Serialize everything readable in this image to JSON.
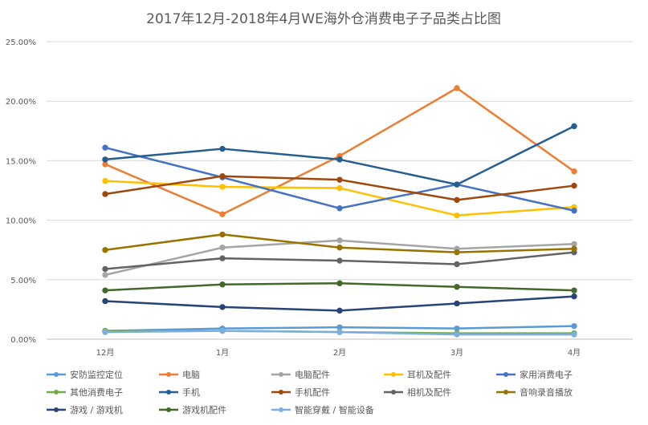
{
  "chart_data": {
    "type": "line",
    "title": "2017年12月-2018年4月WE海外仓消费电子子品类占比图",
    "xlabel": "",
    "ylabel": "",
    "categories": [
      "12月",
      "1月",
      "2月",
      "3月",
      "4月"
    ],
    "ylim": [
      0,
      25
    ],
    "yticks": [
      "0.00%",
      "5.00%",
      "10.00%",
      "15.00%",
      "20.00%",
      "25.00%"
    ],
    "grid": true,
    "legend_position": "bottom",
    "series": [
      {
        "name": "安防监控定位",
        "color": "#5b9bd5",
        "values": [
          0.7,
          0.9,
          1.0,
          0.9,
          1.1
        ]
      },
      {
        "name": "电脑",
        "color": "#ed7d31",
        "values": [
          14.7,
          10.5,
          15.4,
          21.1,
          14.1
        ]
      },
      {
        "name": "电脑配件",
        "color": "#a5a5a5",
        "values": [
          5.4,
          7.7,
          8.3,
          7.6,
          8.0
        ]
      },
      {
        "name": "耳机及配件",
        "color": "#ffc000",
        "values": [
          13.3,
          12.8,
          12.7,
          10.4,
          11.1
        ]
      },
      {
        "name": "家用消费电子",
        "color": "#4472c4",
        "values": [
          16.1,
          13.6,
          11.0,
          13.0,
          10.8
        ]
      },
      {
        "name": "其他消费电子",
        "color": "#70ad47",
        "values": [
          0.7,
          0.7,
          0.6,
          0.5,
          0.5
        ]
      },
      {
        "name": "手机",
        "color": "#255e91",
        "values": [
          15.1,
          16.0,
          15.1,
          13.0,
          17.9
        ]
      },
      {
        "name": "手机配件",
        "color": "#9e480e",
        "values": [
          12.2,
          13.7,
          13.4,
          11.7,
          12.9
        ]
      },
      {
        "name": "相机及配件",
        "color": "#636363",
        "values": [
          5.9,
          6.8,
          6.6,
          6.3,
          7.3
        ]
      },
      {
        "name": "音响录音播放",
        "color": "#997300",
        "values": [
          7.5,
          8.8,
          7.7,
          7.3,
          7.6
        ]
      },
      {
        "name": "游戏 / 游戏机",
        "color": "#264478",
        "values": [
          3.2,
          2.7,
          2.4,
          3.0,
          3.6
        ]
      },
      {
        "name": "游戏机配件",
        "color": "#43682b",
        "values": [
          4.1,
          4.6,
          4.7,
          4.4,
          4.1
        ]
      },
      {
        "name": "智能穿戴 / 智能设备",
        "color": "#7cafdd",
        "values": [
          0.6,
          0.7,
          0.6,
          0.4,
          0.4
        ]
      }
    ]
  }
}
